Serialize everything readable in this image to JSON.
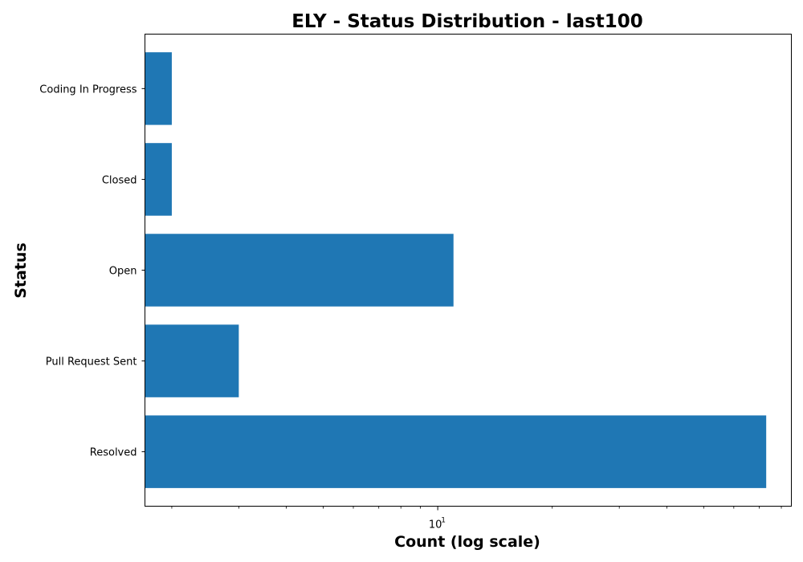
{
  "chart_data": {
    "type": "bar",
    "orientation": "horizontal",
    "title": "ELY - Status Distribution - last100",
    "xlabel": "Count (log scale)",
    "ylabel": "Status",
    "x_scale": "log",
    "xlim": [
      1.7,
      85
    ],
    "x_major_tick": {
      "base": "10",
      "exponent": "1",
      "value": 10
    },
    "categories": [
      "Coding In Progress",
      "Closed",
      "Open",
      "Pull Request Sent",
      "Resolved"
    ],
    "values": [
      2,
      2,
      11,
      3,
      73
    ],
    "bar_color": "#1f77b4",
    "grid": false,
    "legend": "none"
  }
}
